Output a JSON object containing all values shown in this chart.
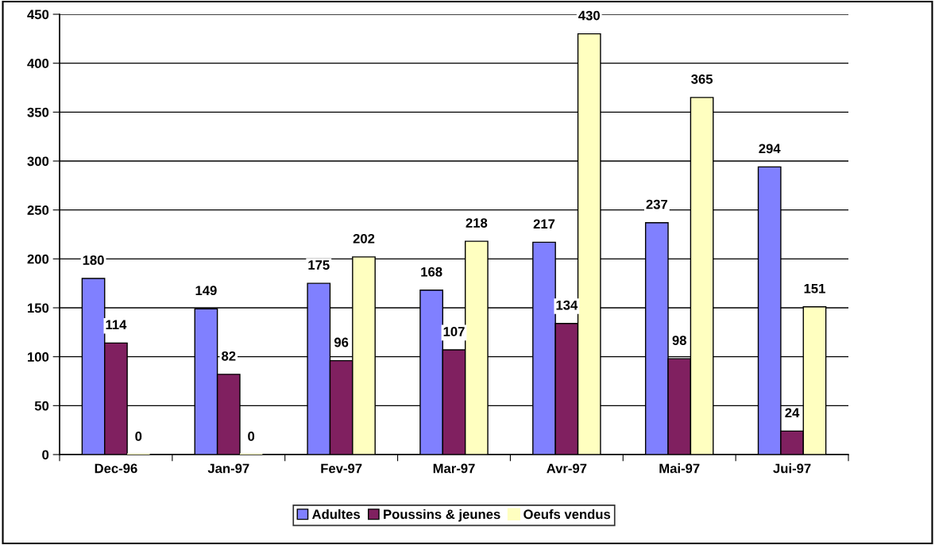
{
  "chart_data": {
    "type": "bar",
    "categories": [
      "Dec-96",
      "Jan-97",
      "Fev-97",
      "Mar-97",
      "Avr-97",
      "Mai-97",
      "Jui-97"
    ],
    "series": [
      {
        "name": "Adultes",
        "color": "#8080ff",
        "values": [
          180,
          149,
          175,
          168,
          217,
          237,
          294
        ]
      },
      {
        "name": "Poussins & jeunes",
        "color": "#802060",
        "values": [
          114,
          82,
          96,
          107,
          134,
          98,
          24
        ]
      },
      {
        "name": "Oeufs vendus",
        "color": "#ffffc0",
        "values": [
          0,
          0,
          202,
          218,
          430,
          365,
          151
        ]
      }
    ],
    "ylim": [
      0,
      450
    ],
    "yticks": [
      0,
      50,
      100,
      150,
      200,
      250,
      300,
      350,
      400,
      450
    ],
    "grid": "y",
    "legend": "bottom",
    "data_labels": true
  }
}
